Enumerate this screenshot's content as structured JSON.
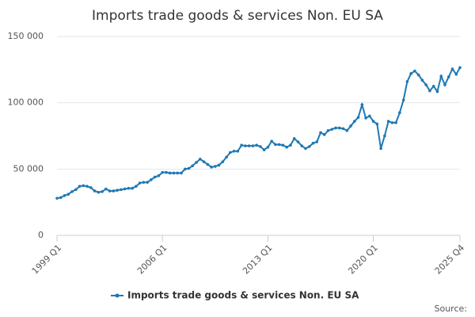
{
  "chart_data": {
    "type": "line",
    "title": "Imports trade goods & services Non. EU SA",
    "categories": [
      "1999 Q1",
      null,
      null,
      null,
      null,
      null,
      null,
      null,
      null,
      null,
      null,
      null,
      null,
      null,
      null,
      null,
      null,
      null,
      null,
      null,
      null,
      null,
      null,
      null,
      null,
      null,
      null,
      null,
      "2006 Q1",
      null,
      null,
      null,
      null,
      null,
      null,
      null,
      null,
      null,
      null,
      null,
      null,
      null,
      null,
      null,
      null,
      null,
      null,
      null,
      null,
      null,
      null,
      null,
      null,
      null,
      null,
      null,
      "2013 Q1",
      null,
      null,
      null,
      null,
      null,
      null,
      null,
      null,
      null,
      null,
      null,
      null,
      null,
      null,
      null,
      null,
      null,
      null,
      null,
      null,
      null,
      null,
      null,
      null,
      null,
      null,
      null,
      "2020 Q1",
      null,
      null,
      null,
      null,
      null,
      null,
      null,
      null,
      null,
      null,
      null,
      null,
      null,
      null,
      null,
      null,
      null,
      null,
      null,
      null,
      null,
      null,
      "2025 Q4"
    ],
    "series": [
      {
        "name": "Imports trade goods & services Non. EU SA",
        "color": "#1f78b4",
        "values": [
          28000,
          28500,
          30000,
          31000,
          33000,
          34500,
          37000,
          37500,
          37000,
          36000,
          33500,
          32500,
          33000,
          35000,
          33500,
          33500,
          34000,
          34500,
          35000,
          35500,
          35500,
          37000,
          39500,
          40000,
          40000,
          42000,
          44000,
          45000,
          47500,
          47500,
          47000,
          47000,
          47000,
          47000,
          50000,
          50500,
          52500,
          55000,
          57500,
          55500,
          53500,
          51500,
          52000,
          53000,
          55500,
          59000,
          62500,
          63500,
          63500,
          68000,
          67500,
          67500,
          67500,
          68000,
          67000,
          64500,
          66500,
          71000,
          68500,
          68500,
          68000,
          66500,
          68000,
          73000,
          70500,
          67500,
          65500,
          67000,
          69500,
          70500,
          77500,
          76000,
          79000,
          80000,
          81000,
          81000,
          80500,
          79000,
          82500,
          86000,
          89000,
          98500,
          88500,
          90000,
          86000,
          84000,
          65500,
          75000,
          86000,
          85000,
          85000,
          92500,
          102000,
          116000,
          122000,
          124000,
          121000,
          117000,
          113500,
          109000,
          112500,
          108500,
          120000,
          113500,
          119500,
          125500,
          121500,
          126500
        ]
      }
    ],
    "ylim": [
      0,
      150000
    ],
    "yticks": [
      0,
      {
        "value": 50000,
        "label": "50 000"
      },
      {
        "value": 100000,
        "label": "100 000"
      },
      {
        "value": 150000,
        "label": "150 000"
      }
    ],
    "grid": true,
    "legend": "bottom",
    "source": "Source:"
  }
}
